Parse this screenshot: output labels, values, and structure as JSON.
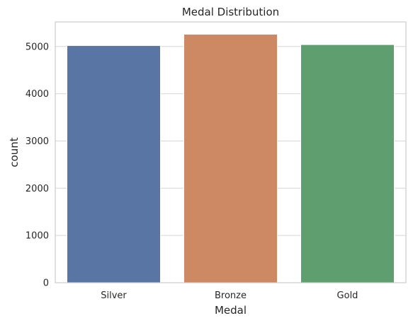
{
  "chart_data": {
    "type": "bar",
    "title": "Medal Distribution",
    "xlabel": "Medal",
    "ylabel": "count",
    "categories": [
      "Silver",
      "Bronze",
      "Gold"
    ],
    "values": [
      5020,
      5260,
      5040
    ],
    "colors": [
      "#5875a4",
      "#cc8963",
      "#5f9e6e"
    ],
    "ylim": [
      0,
      5520
    ],
    "yticks": [
      0,
      1000,
      2000,
      3000,
      4000,
      5000
    ],
    "grid": true,
    "gridColor": "#d6d6d6",
    "spineColor": "#cccccc"
  }
}
